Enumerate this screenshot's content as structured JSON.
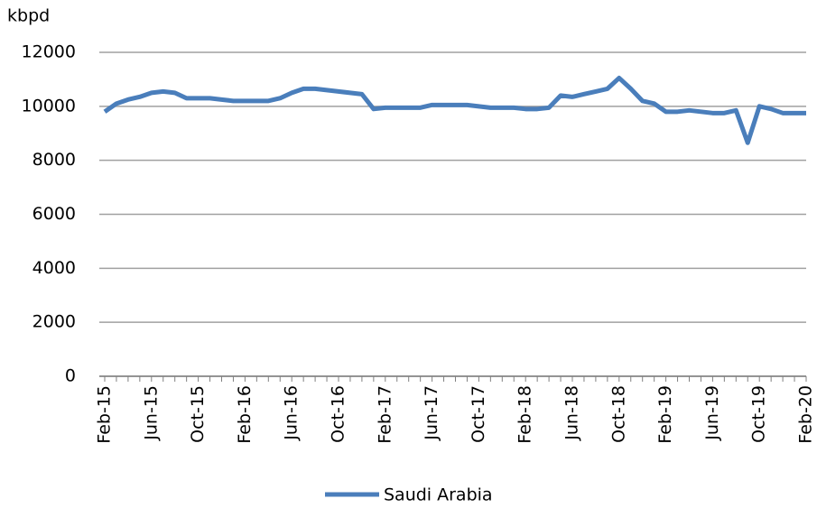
{
  "chart_data": {
    "type": "line",
    "y_label": "kbpd",
    "categories": [
      "Feb-15",
      null,
      null,
      null,
      "Jun-15",
      null,
      null,
      null,
      "Oct-15",
      null,
      null,
      null,
      "Feb-16",
      null,
      null,
      null,
      "Jun-16",
      null,
      null,
      null,
      "Oct-16",
      null,
      null,
      null,
      "Feb-17",
      null,
      null,
      null,
      "Jun-17",
      null,
      null,
      null,
      "Oct-17",
      null,
      null,
      null,
      "Feb-18",
      null,
      null,
      null,
      "Jun-18",
      null,
      null,
      null,
      "Oct-18",
      null,
      null,
      null,
      "Feb-19",
      null,
      null,
      null,
      "Jun-19",
      null,
      null,
      null,
      "Oct-19",
      null,
      null,
      null,
      "Feb-20"
    ],
    "series": [
      {
        "name": "Saudi Arabia",
        "color": "#4a7ebb",
        "values": [
          9800,
          10100,
          10250,
          10350,
          10500,
          10550,
          10500,
          10300,
          10300,
          10300,
          10250,
          10200,
          10200,
          10200,
          10200,
          10300,
          10500,
          10650,
          10650,
          10600,
          10550,
          10500,
          10450,
          9900,
          9950,
          9950,
          9950,
          9950,
          10050,
          10050,
          10050,
          10050,
          10000,
          9950,
          9950,
          9950,
          9900,
          9900,
          9950,
          10400,
          10350,
          10450,
          10550,
          10650,
          11050,
          10650,
          10200,
          10100,
          9800,
          9800,
          9850,
          9800,
          9750,
          9750,
          9850,
          8650,
          10000,
          9900,
          9750,
          9750,
          9750
        ]
      }
    ],
    "ylim": [
      0,
      12000
    ],
    "yticks": [
      0,
      2000,
      4000,
      6000,
      8000,
      10000,
      12000
    ],
    "grid": true,
    "legend": "bottom"
  }
}
